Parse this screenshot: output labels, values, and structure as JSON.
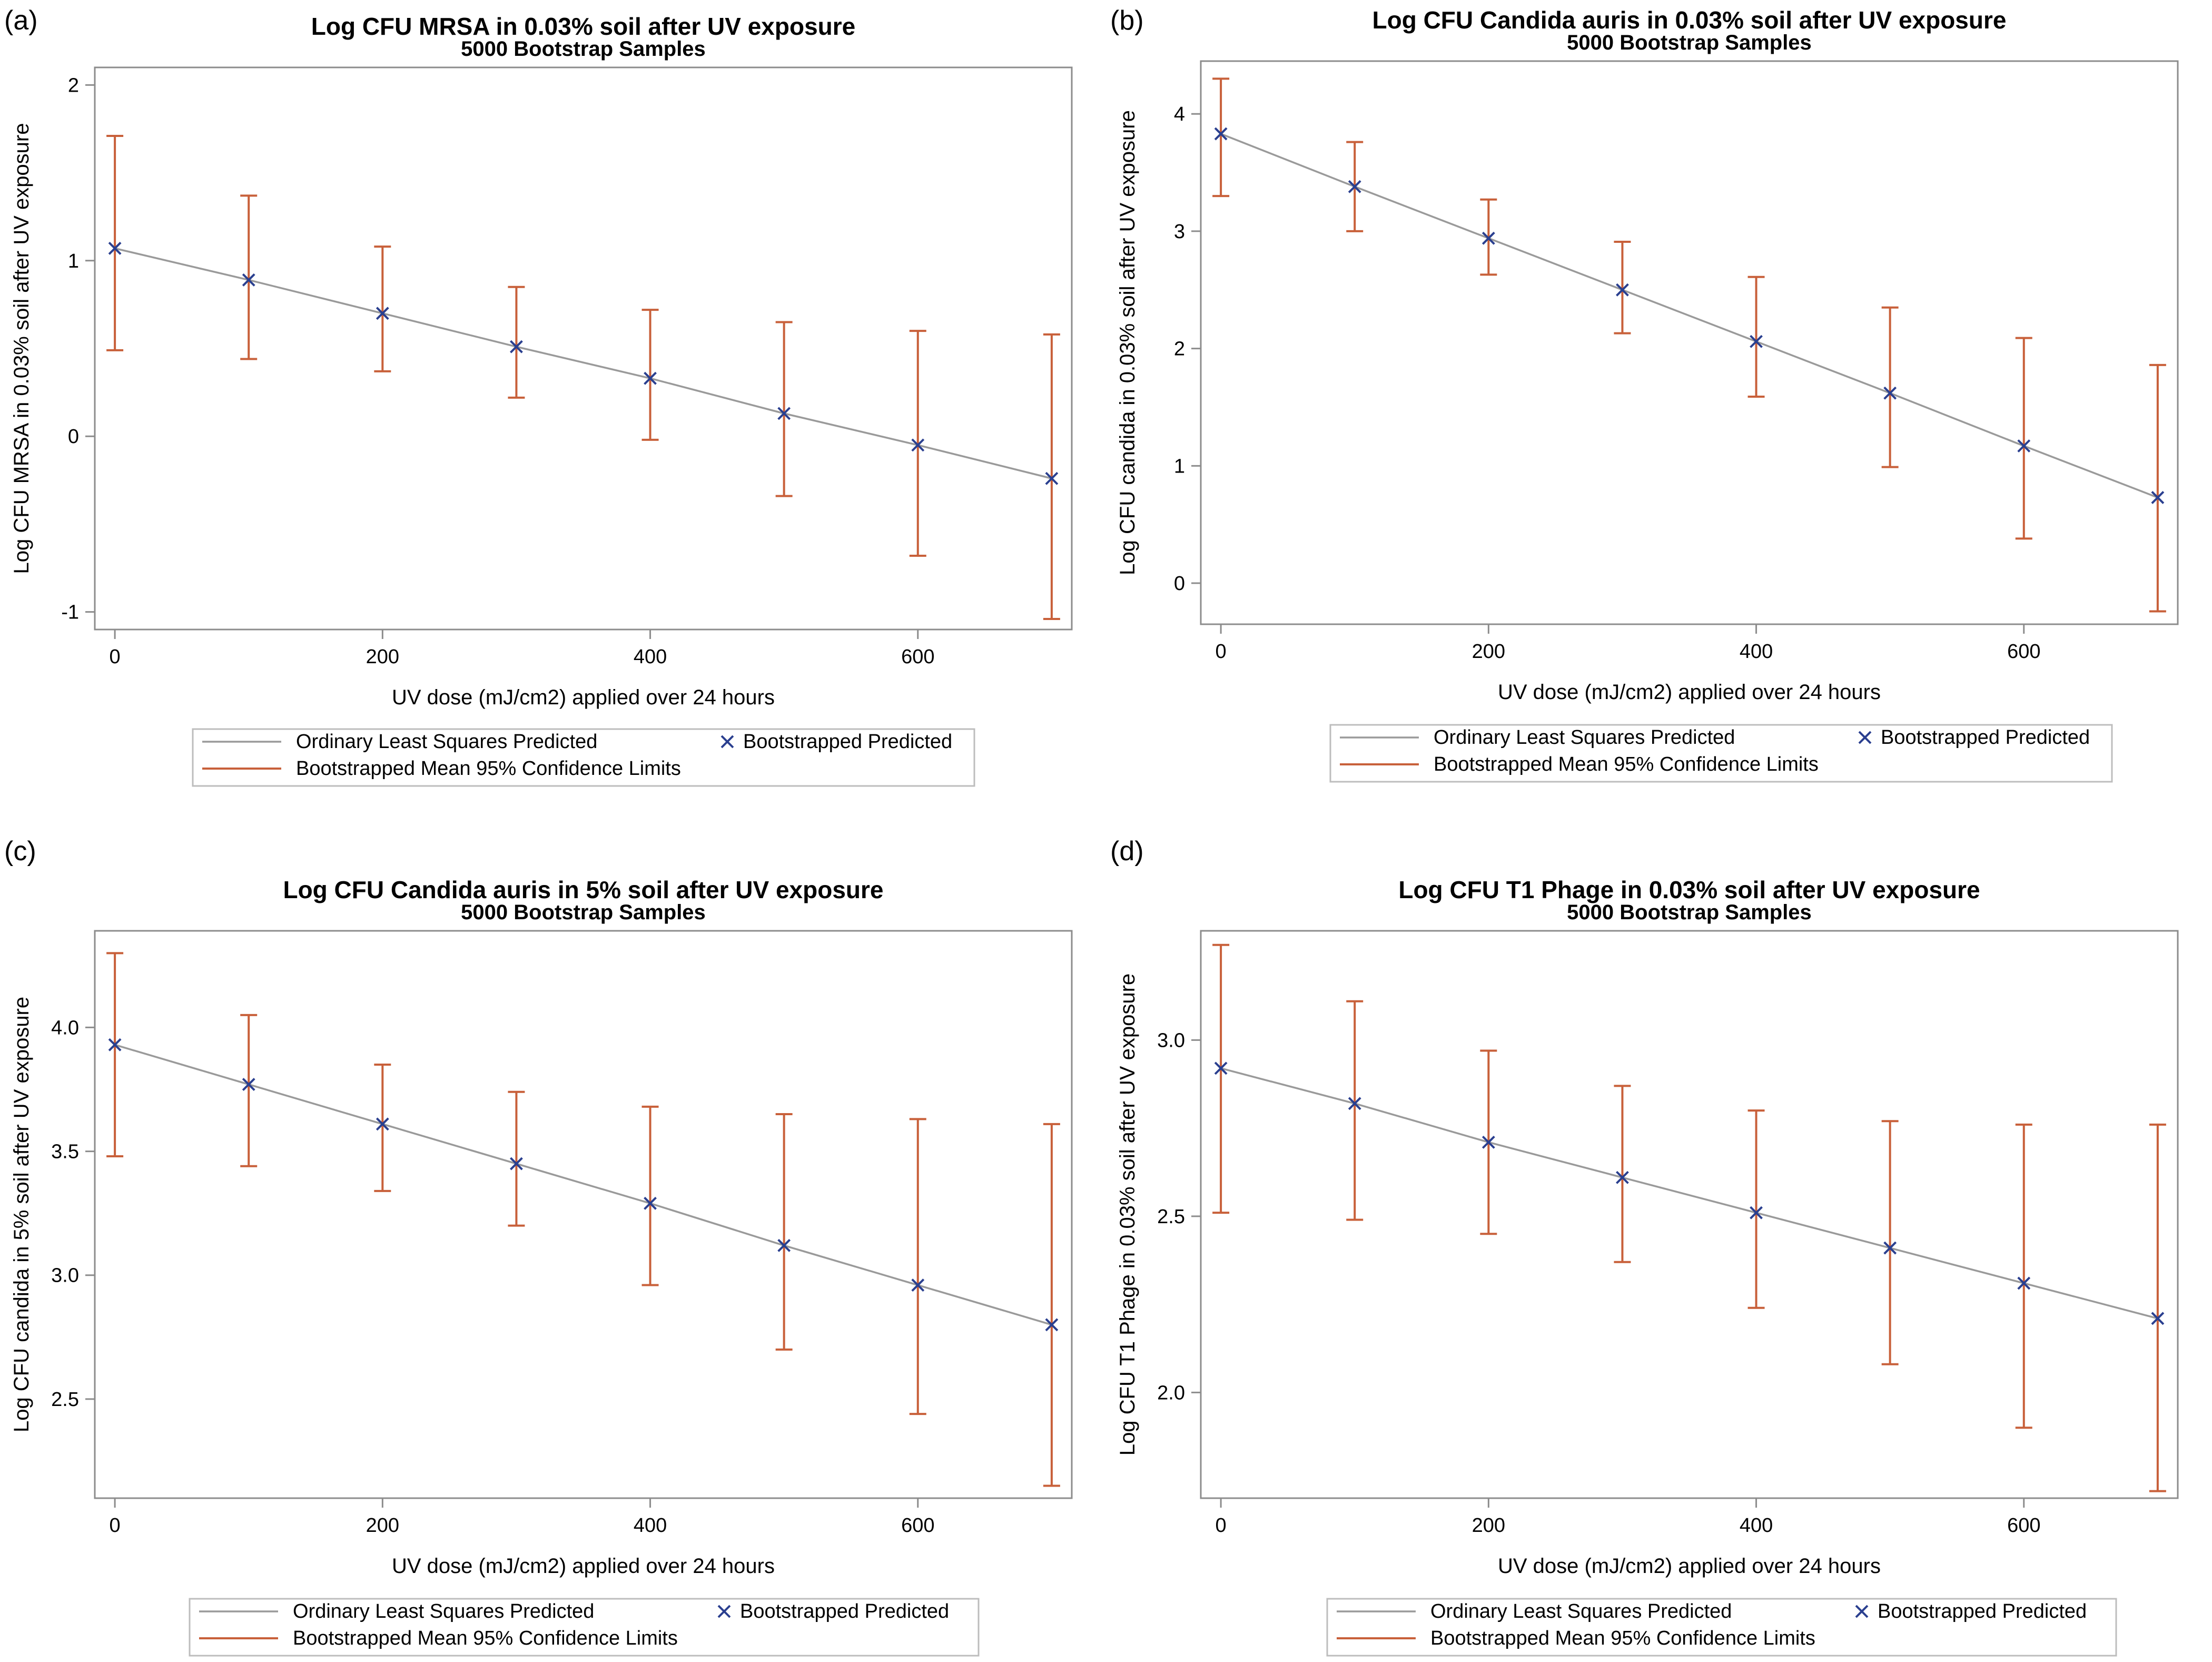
{
  "legend": {
    "ols_label": "Ordinary Least Squares Predicted",
    "boot_label": "Bootstrapped Predicted",
    "ci_label": "Bootstrapped Mean 95% Confidence Limits"
  },
  "colors": {
    "ols_line": "#9a9a9a",
    "ci_bar": "#c8603a",
    "marker": "#2a3f8f",
    "frame": "#8c8c8c"
  },
  "chart_data": [
    {
      "type": "scatter",
      "panel_label": "(a)",
      "title": "Log CFU MRSA in 0.03% soil after UV exposure",
      "subtitle": "5000 Bootstrap Samples",
      "xlabel": "UV dose (mJ/cm2) applied over 24 hours",
      "ylabel": "Log CFU MRSA in 0.03% soil after UV exposure",
      "xlim": [
        -15,
        715
      ],
      "ylim": [
        -1.1,
        2.1
      ],
      "xticks": [
        0,
        200,
        400,
        600
      ],
      "xtick_labels": [
        "0",
        "200",
        "400",
        "600"
      ],
      "yticks": [
        -1,
        0,
        1,
        2
      ],
      "ytick_labels": [
        "-1",
        "0",
        "1",
        "2"
      ],
      "x": [
        0,
        100,
        200,
        300,
        400,
        500,
        600,
        700
      ],
      "predicted": [
        1.07,
        0.89,
        0.7,
        0.51,
        0.33,
        0.13,
        -0.05,
        -0.24
      ],
      "ci_lower": [
        0.49,
        0.44,
        0.37,
        0.22,
        -0.02,
        -0.34,
        -0.68,
        -1.04
      ],
      "ci_upper": [
        1.71,
        1.37,
        1.08,
        0.85,
        0.72,
        0.65,
        0.6,
        0.58
      ]
    },
    {
      "type": "scatter",
      "panel_label": "(b)",
      "title": "Log CFU Candida auris in 0.03% soil after UV exposure",
      "subtitle": "5000 Bootstrap Samples",
      "xlabel": "UV dose (mJ/cm2) applied over 24 hours",
      "ylabel": "Log CFU candida in 0.03% soil after UV exposure",
      "xlim": [
        -15,
        715
      ],
      "ylim": [
        -0.35,
        4.45
      ],
      "xticks": [
        0,
        200,
        400,
        600
      ],
      "xtick_labels": [
        "0",
        "200",
        "400",
        "600"
      ],
      "yticks": [
        0,
        1,
        2,
        3,
        4
      ],
      "ytick_labels": [
        "0",
        "1",
        "2",
        "3",
        "4"
      ],
      "x": [
        0,
        100,
        200,
        300,
        400,
        500,
        600,
        700
      ],
      "predicted": [
        3.83,
        3.38,
        2.94,
        2.5,
        2.06,
        1.62,
        1.17,
        0.73
      ],
      "ci_lower": [
        3.3,
        3.0,
        2.63,
        2.13,
        1.59,
        0.99,
        0.38,
        -0.24
      ],
      "ci_upper": [
        4.3,
        3.76,
        3.27,
        2.91,
        2.61,
        2.35,
        2.09,
        1.86
      ]
    },
    {
      "type": "scatter",
      "panel_label": "(c)",
      "title": "Log CFU Candida auris in 5% soil after UV exposure",
      "subtitle": "5000 Bootstrap Samples",
      "xlabel": "UV dose (mJ/cm2) applied over 24 hours",
      "ylabel": "Log CFU candida in 5% soil after UV exposure",
      "xlim": [
        -15,
        715
      ],
      "ylim": [
        2.1,
        4.39
      ],
      "xticks": [
        0,
        200,
        400,
        600
      ],
      "xtick_labels": [
        "0",
        "200",
        "400",
        "600"
      ],
      "yticks": [
        2.5,
        3.0,
        3.5,
        4.0
      ],
      "ytick_labels": [
        "2.5",
        "3.0",
        "3.5",
        "4.0"
      ],
      "x": [
        0,
        100,
        200,
        300,
        400,
        500,
        600,
        700
      ],
      "predicted": [
        3.93,
        3.77,
        3.61,
        3.45,
        3.29,
        3.12,
        2.96,
        2.8
      ],
      "ci_lower": [
        3.48,
        3.44,
        3.34,
        3.2,
        2.96,
        2.7,
        2.44,
        2.15
      ],
      "ci_upper": [
        4.3,
        4.05,
        3.85,
        3.74,
        3.68,
        3.65,
        3.63,
        3.61
      ]
    },
    {
      "type": "scatter",
      "panel_label": "(d)",
      "title": "Log CFU T1 Phage in 0.03% soil after UV exposure",
      "subtitle": "5000 Bootstrap Samples",
      "xlabel": "UV dose (mJ/cm2) applied over 24 hours",
      "ylabel": "Log CFU T1 Phage in 0.03% soil after UV exposure",
      "xlim": [
        -15,
        715
      ],
      "ylim": [
        1.7,
        3.31
      ],
      "xticks": [
        0,
        200,
        400,
        600
      ],
      "xtick_labels": [
        "0",
        "200",
        "400",
        "600"
      ],
      "yticks": [
        2.0,
        2.5,
        3.0
      ],
      "ytick_labels": [
        "2.0",
        "2.5",
        "3.0"
      ],
      "x": [
        0,
        100,
        200,
        300,
        400,
        500,
        600,
        700
      ],
      "predicted": [
        2.92,
        2.82,
        2.71,
        2.61,
        2.51,
        2.41,
        2.31,
        2.21
      ],
      "ci_lower": [
        2.51,
        2.49,
        2.45,
        2.37,
        2.24,
        2.08,
        1.9,
        1.72
      ],
      "ci_upper": [
        3.27,
        3.11,
        2.97,
        2.87,
        2.8,
        2.77,
        2.76,
        2.76
      ]
    }
  ]
}
